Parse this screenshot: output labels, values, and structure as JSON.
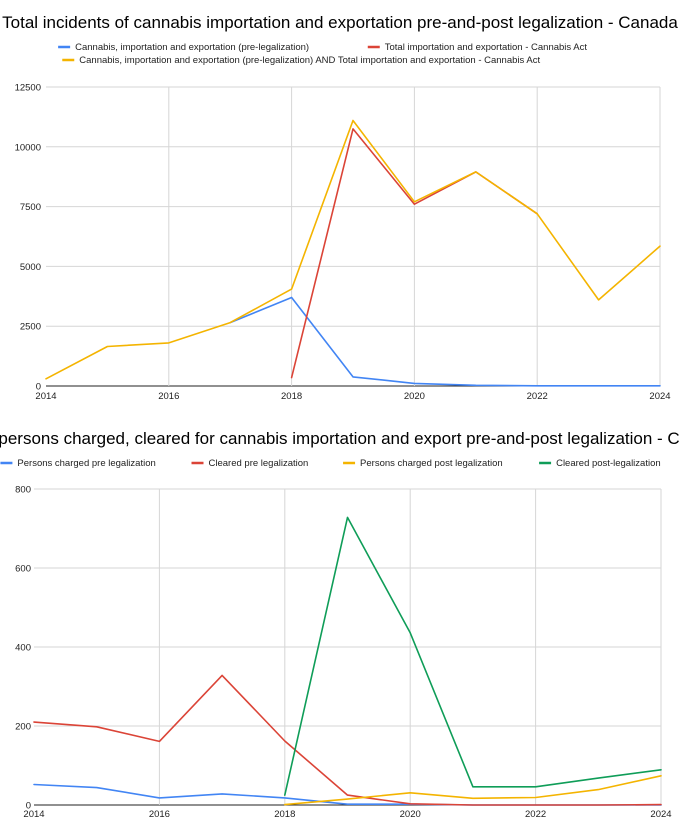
{
  "chart_data": [
    {
      "type": "line",
      "title": "Total incidents of cannabis importation and exportation pre-and-post legalization - Canada",
      "xlabel": "",
      "ylabel": "",
      "xlim": [
        2014,
        2024
      ],
      "ylim": [
        0,
        12500
      ],
      "x_ticks": [
        2014,
        2016,
        2018,
        2020,
        2022,
        2024
      ],
      "y_ticks": [
        0,
        2500,
        5000,
        7500,
        10000,
        12500
      ],
      "grid": true,
      "legend_position": "top",
      "series": [
        {
          "name": "Cannabis, importation and exportation (pre-legalization)",
          "color": "#4285f4",
          "points": [
            [
              2017,
              2650
            ],
            [
              2018,
              3700
            ],
            [
              2019,
              380
            ],
            [
              2020,
              110
            ],
            [
              2021,
              30
            ],
            [
              2022,
              10
            ],
            [
              2023,
              10
            ],
            [
              2024,
              10
            ]
          ]
        },
        {
          "name": "Total importation and exportation - Cannabis Act",
          "color": "#db4437",
          "points": [
            [
              2018,
              350
            ],
            [
              2019,
              10750
            ],
            [
              2020,
              7600
            ],
            [
              2021,
              8950
            ],
            [
              2022,
              7200
            ]
          ]
        },
        {
          "name": "Cannabis, importation and exportation (pre-legalization) AND Total importation and exportation - Cannabis Act",
          "color": "#f4b400",
          "points": [
            [
              2014,
              300
            ],
            [
              2015,
              1650
            ],
            [
              2016,
              1800
            ],
            [
              2017,
              2650
            ],
            [
              2018,
              4050
            ],
            [
              2019,
              11100
            ],
            [
              2020,
              7700
            ],
            [
              2021,
              8950
            ],
            [
              2022,
              7200
            ],
            [
              2023,
              3600
            ],
            [
              2024,
              5850
            ]
          ]
        }
      ]
    },
    {
      "type": "line",
      "title": "Total, persons charged, cleared for cannabis importation and export pre-and-post legalization - Canada",
      "xlabel": "",
      "ylabel": "",
      "xlim": [
        2014,
        2024
      ],
      "ylim": [
        0,
        800
      ],
      "x_ticks": [
        2014,
        2016,
        2018,
        2020,
        2022,
        2024
      ],
      "y_ticks": [
        0,
        200,
        400,
        600,
        800
      ],
      "grid": true,
      "legend_position": "top",
      "series": [
        {
          "name": "Persons charged pre legalization",
          "color": "#4285f4",
          "points": [
            [
              2014,
              52
            ],
            [
              2015,
              44
            ],
            [
              2016,
              18
            ],
            [
              2017,
              28
            ],
            [
              2018,
              18
            ],
            [
              2019,
              2
            ],
            [
              2020,
              2
            ],
            [
              2021,
              0
            ],
            [
              2022,
              0
            ],
            [
              2023,
              0
            ],
            [
              2024,
              0
            ]
          ]
        },
        {
          "name": "Cleared pre legalization",
          "color": "#db4437",
          "points": [
            [
              2014,
              210
            ],
            [
              2015,
              198
            ],
            [
              2016,
              161
            ],
            [
              2017,
              328
            ],
            [
              2018,
              162
            ],
            [
              2019,
              25
            ],
            [
              2020,
              3
            ],
            [
              2021,
              0
            ],
            [
              2022,
              0
            ],
            [
              2023,
              0
            ],
            [
              2024,
              1
            ]
          ]
        },
        {
          "name": "Persons charged post legalization",
          "color": "#f4b400",
          "points": [
            [
              2018,
              1
            ],
            [
              2019,
              15
            ],
            [
              2020,
              31
            ],
            [
              2021,
              17
            ],
            [
              2022,
              19
            ],
            [
              2023,
              39
            ],
            [
              2024,
              74
            ]
          ]
        },
        {
          "name": "Cleared post-legalization",
          "color": "#0f9d58",
          "points": [
            [
              2018,
              25
            ],
            [
              2019,
              728
            ],
            [
              2020,
              436
            ],
            [
              2021,
              46
            ],
            [
              2022,
              46
            ],
            [
              2023,
              68
            ],
            [
              2024,
              89
            ]
          ]
        }
      ]
    }
  ]
}
